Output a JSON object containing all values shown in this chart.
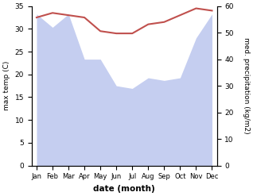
{
  "months": [
    "Jan",
    "Feb",
    "Mar",
    "Apr",
    "May",
    "Jun",
    "Jul",
    "Aug",
    "Sep",
    "Oct",
    "Nov",
    "Dec"
  ],
  "temp": [
    32.5,
    33.5,
    33.0,
    32.5,
    29.5,
    29.0,
    29.0,
    31.0,
    31.5,
    33.0,
    34.5,
    34.0
  ],
  "precip": [
    57,
    52,
    57,
    40,
    40,
    30,
    29,
    33,
    32,
    33,
    48,
    57
  ],
  "temp_color": "#c0504d",
  "precip_color": "#c5cef0",
  "ylabel_left": "max temp (C)",
  "ylabel_right": "med. precipitation (kg/m2)",
  "xlabel": "date (month)",
  "ylim_left": [
    0,
    35
  ],
  "ylim_right": [
    0,
    60
  ],
  "yticks_left": [
    0,
    5,
    10,
    15,
    20,
    25,
    30,
    35
  ],
  "yticks_right": [
    0,
    10,
    20,
    30,
    40,
    50,
    60
  ],
  "bg_color": "#ffffff",
  "temp_linewidth": 1.5
}
